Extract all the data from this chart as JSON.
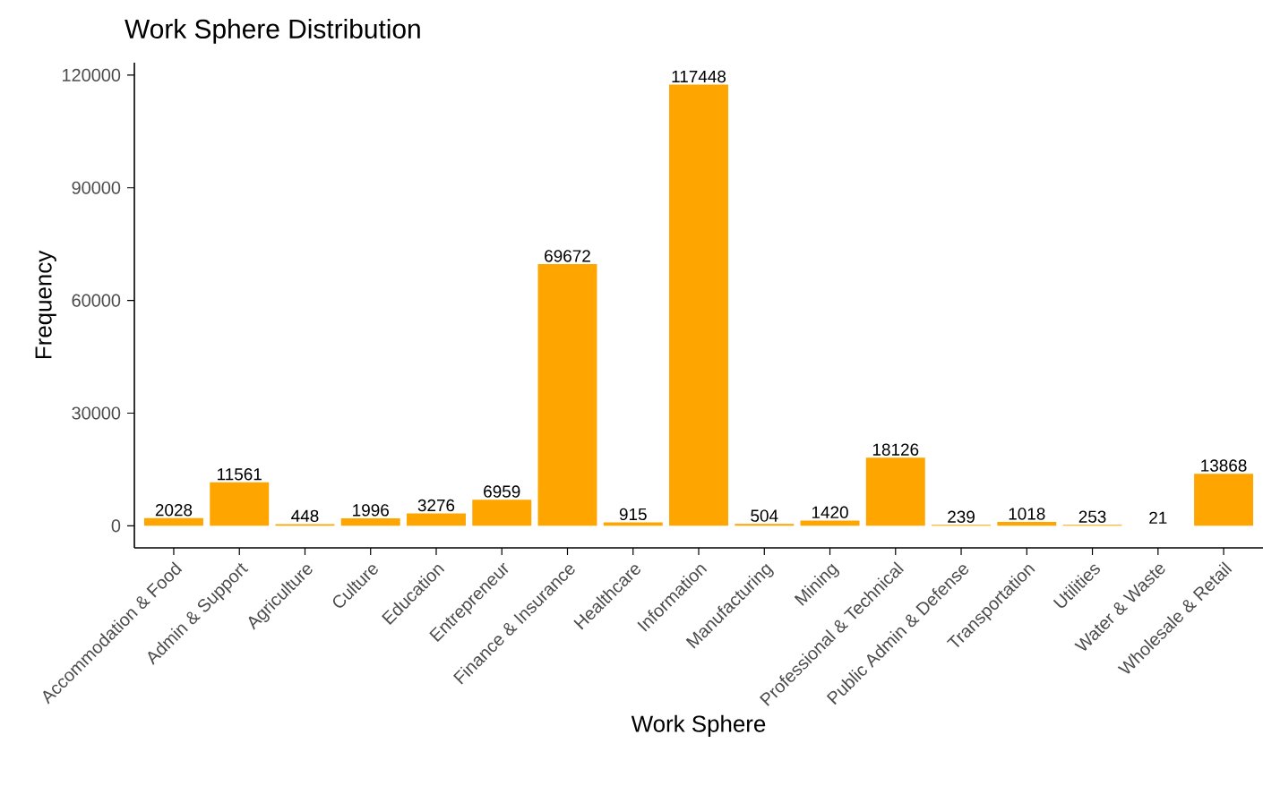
{
  "chart_data": {
    "type": "bar",
    "title": "Work Sphere Distribution",
    "xlabel": "Work Sphere",
    "ylabel": "Frequency",
    "categories": [
      "Accommodation & Food",
      "Admin & Support",
      "Agriculture",
      "Culture",
      "Education",
      "Entrepreneur",
      "Finance & Insurance",
      "Healthcare",
      "Information",
      "Manufacturing",
      "Mining",
      "Professional & Technical",
      "Public Admin & Defense",
      "Transportation",
      "Utilities",
      "Water & Waste",
      "Wholesale & Retail"
    ],
    "values": [
      2028,
      11561,
      448,
      1996,
      3276,
      6959,
      69672,
      915,
      117448,
      504,
      1420,
      18126,
      239,
      1018,
      253,
      21,
      13868
    ],
    "color": "#ffa500",
    "data_labels": true,
    "grid": false,
    "ylim": [
      -5872,
      123320
    ],
    "yticks": [
      0,
      30000,
      60000,
      90000,
      120000
    ]
  }
}
